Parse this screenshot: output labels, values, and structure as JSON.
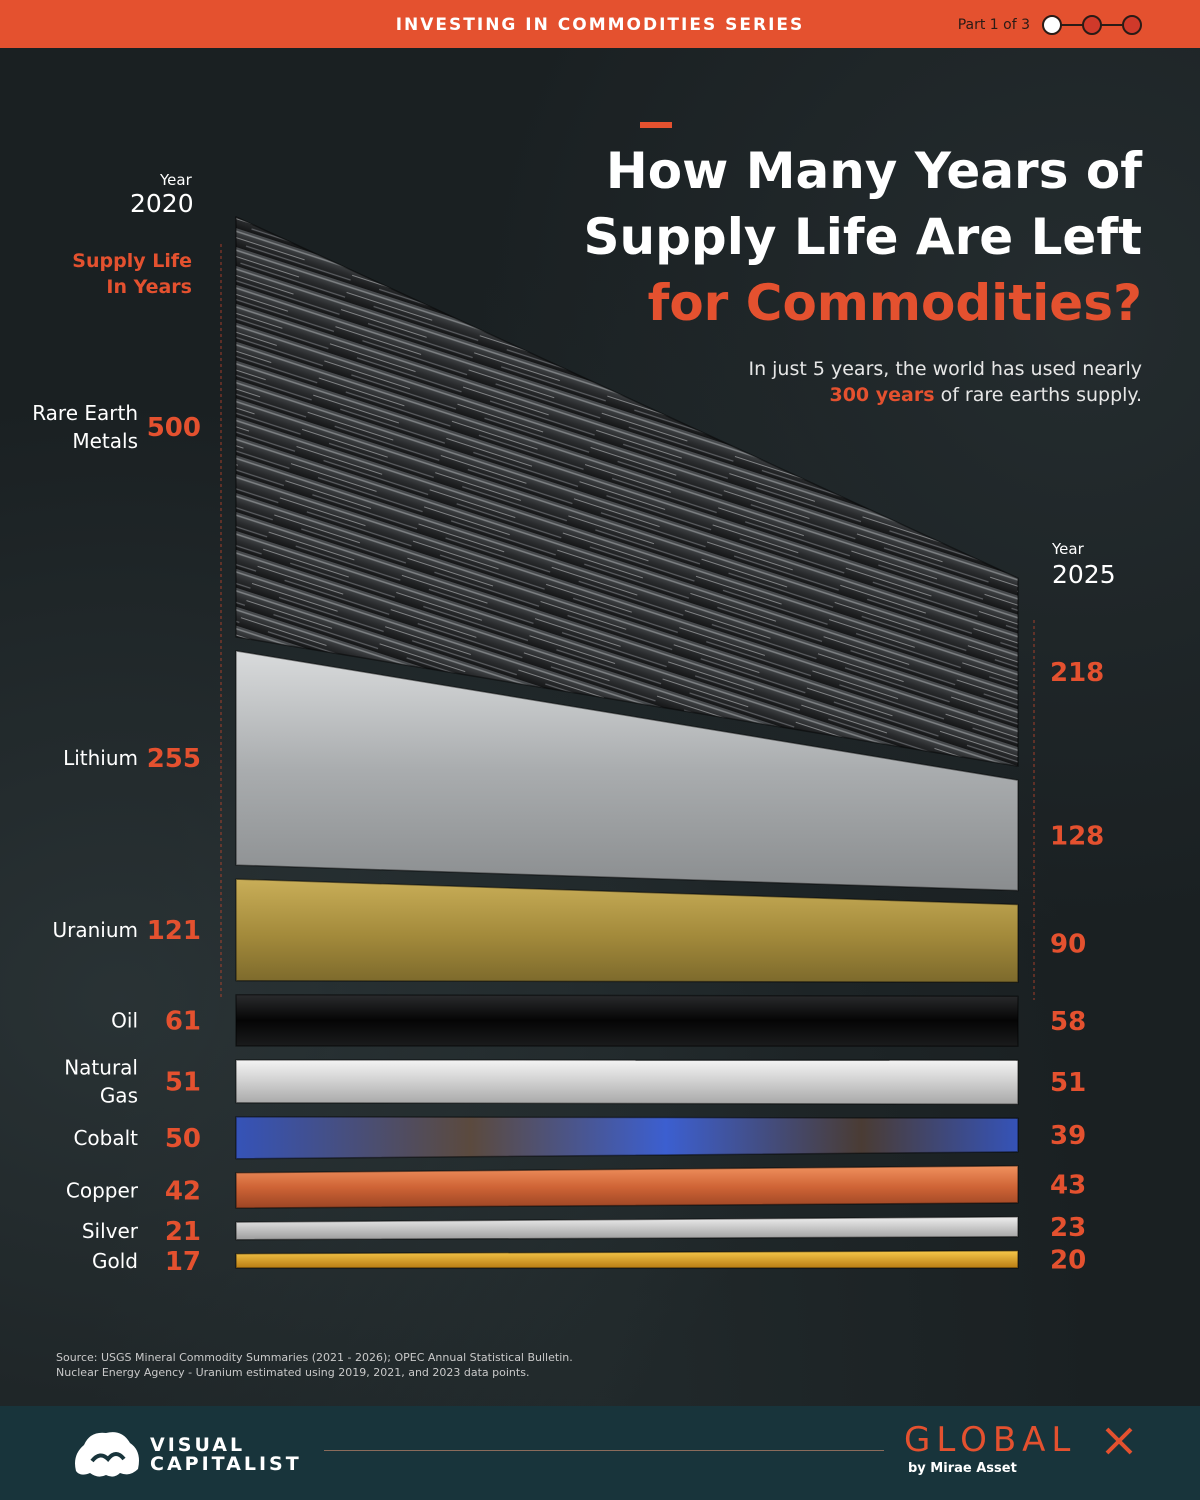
{
  "header": {
    "series_title": "INVESTING IN COMMODITIES SERIES",
    "part_label": "Part 1 of 3"
  },
  "title": {
    "line1": "How Many Years of",
    "line2": "Supply Life Are Left",
    "line3": "for Commodities?"
  },
  "subtitle": {
    "before": "In just 5 years, the world has used nearly",
    "highlight": "300 years",
    "after": " of rare earths supply."
  },
  "left_axis": {
    "year_label": "Year",
    "year": "2020",
    "measure_line1": "Supply Life",
    "measure_line2": "In Years"
  },
  "right_axis": {
    "year_label": "Year",
    "year": "2025"
  },
  "chart_data": {
    "type": "bar",
    "categories": [
      "Rare Earth Metals",
      "Lithium",
      "Uranium",
      "Oil",
      "Natural Gas",
      "Cobalt",
      "Copper",
      "Silver",
      "Gold"
    ],
    "series": [
      {
        "name": "2020",
        "values": [
          500,
          255,
          121,
          61,
          51,
          50,
          42,
          21,
          17
        ]
      },
      {
        "name": "2025",
        "values": [
          218,
          128,
          90,
          58,
          51,
          39,
          43,
          23,
          20
        ]
      }
    ],
    "value_labels_2020": [
      "500",
      "255",
      "121",
      "61",
      "51",
      "50",
      "42",
      "21",
      "17"
    ],
    "value_labels_2025": [
      "218",
      "128",
      "90",
      "58",
      "51",
      "39",
      "43",
      "23",
      "20"
    ],
    "name_lines": [
      [
        "Rare Earth",
        "Metals"
      ],
      [
        "Lithium"
      ],
      [
        "Uranium"
      ],
      [
        "Oil"
      ],
      [
        "Natural",
        "Gas"
      ],
      [
        "Cobalt"
      ],
      [
        "Copper"
      ],
      [
        "Silver"
      ],
      [
        "Gold"
      ]
    ],
    "colors": [
      "#3a3d40",
      "#b8babb",
      "#b59a46",
      "#0d0d0e",
      "#dedede",
      "#3c59b8",
      "#d9703f",
      "#c8c8c8",
      "#e0a82a"
    ]
  },
  "source": {
    "line1": "Source: USGS Mineral Commodity Summaries (2021 - 2026); OPEC Annual Statistical Bulletin.",
    "line2": "Nuclear Energy Agency - Uranium estimated using 2019, 2021, and 2023 data points."
  },
  "footer": {
    "vc_line1": "VISUAL",
    "vc_line2": "CAPITALIST",
    "sponsor": "GLOBAL",
    "sponsor_sub": "by Mirae Asset"
  },
  "colors": {
    "accent": "#e4512f",
    "footer": "#18343b"
  }
}
